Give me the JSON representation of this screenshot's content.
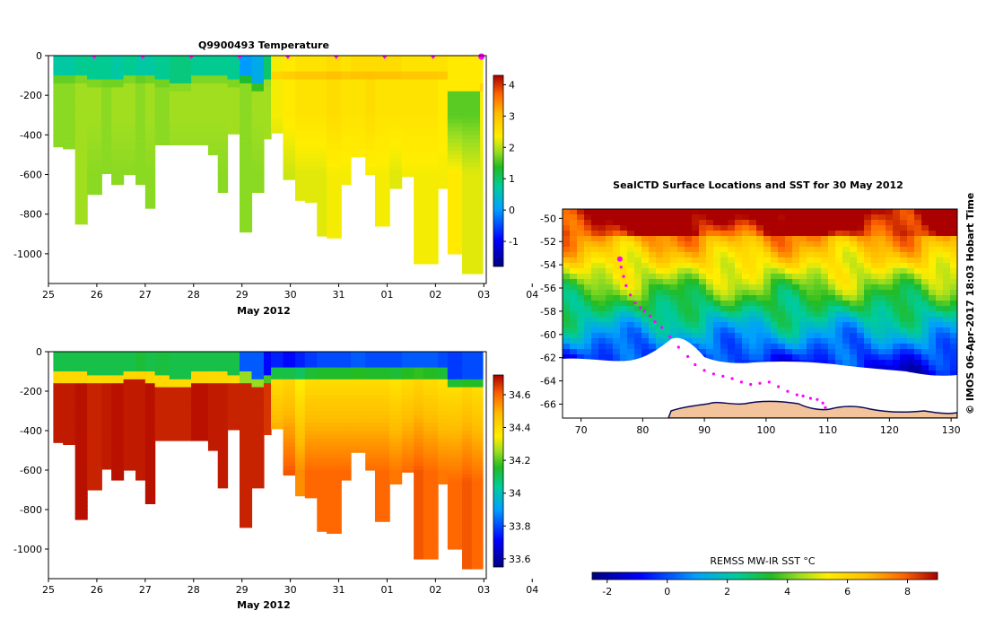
{
  "chart_data": [
    {
      "id": "temperature",
      "type": "heatmap",
      "title": "Q9900493  Temperature",
      "xlabel": "May 2012",
      "ylabel": "",
      "xlim": [
        25,
        34.05
      ],
      "ylim": [
        0,
        -1150
      ],
      "x_tick_labels": [
        "25",
        "26",
        "27",
        "28",
        "29",
        "30",
        "31",
        "01",
        "02",
        "03",
        "04"
      ],
      "y_tick_labels": [
        "0",
        "-200",
        "-400",
        "-600",
        "-800",
        "-1000"
      ],
      "y_ticks": [
        0,
        -200,
        -400,
        -600,
        -800,
        -1000
      ],
      "profile_markers_x": [
        25.95,
        26.95,
        27.95,
        28.95,
        29.95,
        30.95,
        31.95,
        32.95,
        33.95
      ],
      "colorbar": {
        "range": [
          -1.8,
          4.3
        ],
        "tick_labels": [
          "-1",
          "0",
          "1",
          "2",
          "3",
          "4"
        ],
        "ticks": [
          -1,
          0,
          1,
          2,
          3,
          4
        ]
      },
      "profiles": {
        "start": [
          25.1,
          25.3,
          25.55,
          25.8,
          26.1,
          26.3,
          26.55,
          26.8,
          27.0,
          27.2,
          27.5,
          27.95,
          28.3,
          28.5,
          28.7,
          28.95,
          29.2,
          29.45,
          29.6,
          29.85,
          30.1,
          30.3,
          30.55,
          30.75,
          31.05,
          31.25,
          31.55,
          31.75,
          32.05,
          32.3,
          32.55,
          32.75,
          33.05,
          33.25,
          33.55,
          33.75,
          33.92
        ],
        "max_depth": [
          460,
          470,
          850,
          700,
          595,
          650,
          600,
          650,
          770,
          450,
          450,
          450,
          500,
          690,
          395,
          890,
          690,
          420,
          390,
          625,
          730,
          740,
          910,
          920,
          650,
          510,
          600,
          860,
          670,
          610,
          1050,
          1050,
          670,
          1000,
          1100,
          1100,
          1100
        ],
        "surface_temp": [
          0.7,
          0.7,
          0.8,
          0.8,
          0.8,
          0.7,
          0.8,
          0.7,
          0.7,
          0.8,
          0.9,
          0.8,
          0.8,
          0.8,
          0.8,
          0.0,
          0.2,
          1.0,
          2.3,
          2.4,
          2.5,
          2.5,
          2.5,
          2.6,
          2.5,
          2.6,
          2.6,
          2.6,
          2.6,
          2.5,
          2.5,
          2.5,
          2.5,
          2.4,
          2.4,
          2.4,
          2.4
        ],
        "mid_temp": [
          1.8,
          1.8,
          1.9,
          1.9,
          1.8,
          1.9,
          1.9,
          1.8,
          1.9,
          1.8,
          1.9,
          1.9,
          1.9,
          1.9,
          1.9,
          1.8,
          1.9,
          1.9,
          2.3,
          2.4,
          2.5,
          2.5,
          2.5,
          2.6,
          2.5,
          2.5,
          2.6,
          2.5,
          2.5,
          2.5,
          2.5,
          2.5,
          2.4,
          1.6,
          1.6,
          1.6,
          2.3
        ],
        "deep_temp": [
          1.8,
          1.8,
          1.9,
          1.8,
          1.8,
          1.8,
          1.8,
          1.8,
          1.8,
          1.8,
          1.8,
          1.8,
          1.8,
          1.8,
          1.9,
          1.8,
          1.8,
          1.9,
          2.0,
          2.1,
          2.2,
          2.2,
          2.2,
          2.3,
          2.3,
          2.3,
          2.3,
          2.3,
          2.2,
          2.3,
          2.3,
          2.3,
          2.3,
          2.4,
          2.2,
          2.2,
          2.2
        ],
        "mixed_layer_depth": [
          130,
          130,
          130,
          140,
          140,
          140,
          120,
          120,
          130,
          150,
          160,
          130,
          130,
          130,
          140,
          130,
          160,
          140,
          110,
          110,
          110,
          110,
          110,
          110,
          110,
          110,
          110,
          110,
          110,
          110,
          110,
          110,
          110,
          160,
          160,
          160,
          160
        ]
      }
    },
    {
      "id": "salinity",
      "type": "heatmap",
      "title": "",
      "xlabel": "May 2012",
      "ylabel": "",
      "xlim": [
        25,
        34.05
      ],
      "ylim": [
        0,
        -1150
      ],
      "x_tick_labels": [
        "25",
        "26",
        "27",
        "28",
        "29",
        "30",
        "31",
        "01",
        "02",
        "03",
        "04"
      ],
      "y_tick_labels": [
        "0",
        "-200",
        "-400",
        "-600",
        "-800",
        "-1000"
      ],
      "y_ticks": [
        0,
        -200,
        -400,
        -600,
        -800,
        -1000
      ],
      "colorbar": {
        "range": [
          33.55,
          34.72
        ],
        "tick_labels": [
          "33.6",
          "33.8",
          "34",
          "34.2",
          "34.4",
          "34.6"
        ],
        "ticks": [
          33.6,
          33.8,
          34.0,
          34.2,
          34.4,
          34.6
        ]
      },
      "profiles": {
        "surface_sal": [
          34.12,
          34.12,
          34.12,
          34.12,
          34.12,
          34.12,
          34.12,
          34.14,
          34.12,
          34.13,
          34.12,
          34.12,
          34.12,
          34.12,
          34.12,
          33.82,
          33.82,
          33.72,
          33.75,
          33.72,
          33.75,
          33.78,
          33.8,
          33.8,
          33.8,
          33.82,
          33.8,
          33.8,
          33.8,
          33.82,
          33.82,
          33.82,
          33.8,
          33.78,
          33.8,
          33.8,
          33.8
        ],
        "deep_sal": [
          34.69,
          34.69,
          34.7,
          34.68,
          34.69,
          34.7,
          34.69,
          34.69,
          34.7,
          34.68,
          34.68,
          34.7,
          34.69,
          34.69,
          34.68,
          34.68,
          34.68,
          34.66,
          34.5,
          34.52,
          34.45,
          34.5,
          34.5,
          34.5,
          34.5,
          34.5,
          34.5,
          34.5,
          34.48,
          34.5,
          34.52,
          34.5,
          34.48,
          34.5,
          34.52,
          34.5,
          34.5
        ]
      }
    },
    {
      "id": "sst-map",
      "type": "heatmap",
      "title": "SealCTD Surface Locations and SST for 30 May 2012",
      "xlabel": "",
      "ylabel": "",
      "xlim": [
        67,
        131
      ],
      "ylim": [
        -67.2,
        -49.2
      ],
      "x_tick_labels": [
        "70",
        "80",
        "90",
        "100",
        "110",
        "120",
        "130"
      ],
      "x_ticks": [
        70,
        80,
        90,
        100,
        110,
        120,
        130
      ],
      "y_tick_labels": [
        "-50",
        "-52",
        "-54",
        "-56",
        "-58",
        "-60",
        "-62",
        "-64",
        "-66"
      ],
      "y_ticks": [
        -50,
        -52,
        -54,
        -56,
        -58,
        -60,
        -62,
        -64,
        -66
      ],
      "colorbar": {
        "label": "REMSS MW-IR SST °C",
        "range": [
          -2.5,
          9.0
        ],
        "tick_labels": [
          "-2",
          "0",
          "2",
          "4",
          "6",
          "8"
        ],
        "ticks": [
          -2,
          0,
          2,
          4,
          6,
          8
        ]
      },
      "seal_track": {
        "lon": [
          76.3,
          76.5,
          76.9,
          77.3,
          78.0,
          78.8,
          79.6,
          80.3,
          81.2,
          82.0,
          83.1,
          84.4,
          85.8,
          87.3,
          88.5,
          90.0,
          91.5,
          93.0,
          94.5,
          96.0,
          97.5,
          99.0,
          100.5,
          102.0,
          103.5,
          105.0,
          106.0,
          107.2,
          108.3,
          109.2,
          109.6
        ],
        "lat": [
          -53.5,
          -54.2,
          -55.0,
          -55.8,
          -56.6,
          -57.3,
          -57.7,
          -58.0,
          -58.4,
          -58.9,
          -59.4,
          -60.2,
          -61.1,
          -61.9,
          -62.6,
          -63.1,
          -63.4,
          -63.6,
          -63.8,
          -64.1,
          -64.3,
          -64.2,
          -64.1,
          -64.5,
          -64.9,
          -65.2,
          -65.3,
          -65.5,
          -65.6,
          -65.9,
          -66.3
        ]
      },
      "credit": "© IMOS 06-Apr-2017 18:03 Hobart Time"
    }
  ]
}
